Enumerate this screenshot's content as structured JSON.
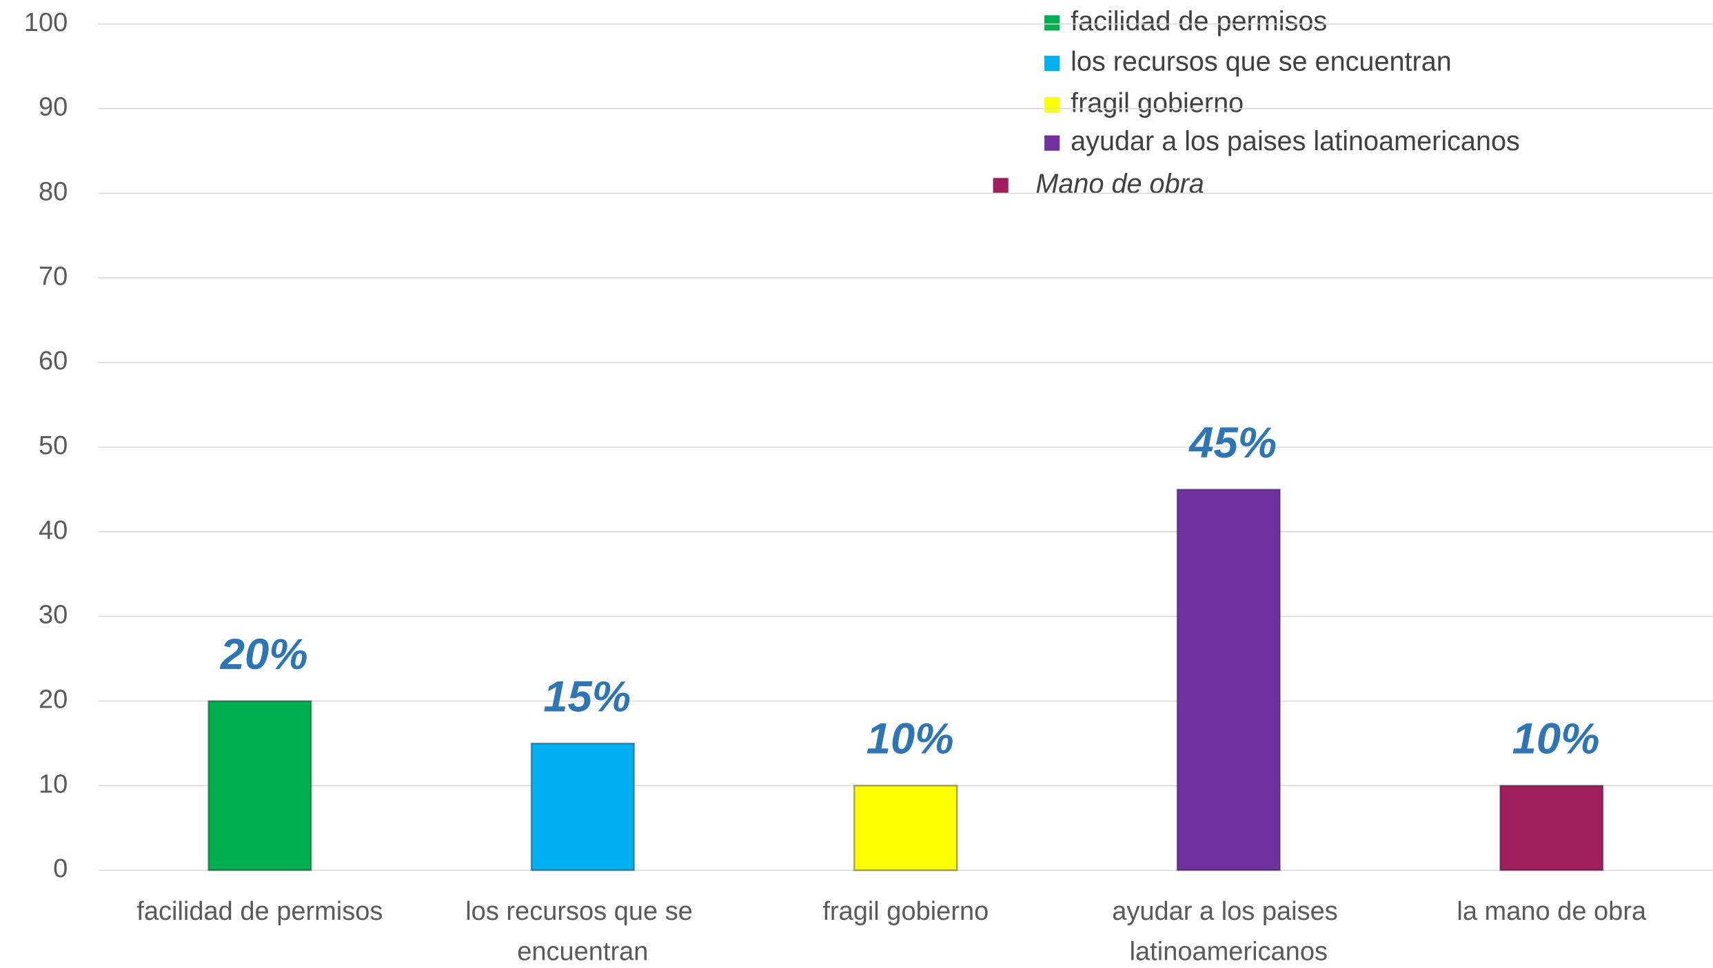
{
  "chart_data": {
    "type": "bar",
    "categories": [
      "facilidad de permisos",
      "los recursos que se encuentran",
      "fragil gobierno",
      "ayudar a los paises latinoamericanos",
      "la mano de obra"
    ],
    "values": [
      20,
      15,
      10,
      45,
      10
    ],
    "value_labels": [
      "20%",
      "15%",
      "10%",
      "45%",
      "10%"
    ],
    "colors": [
      "#00b050",
      "#00b0f0",
      "#ffff00",
      "#7030a0",
      "#9e1e5e"
    ],
    "legend": {
      "names": [
        "facilidad de permisos",
        "los recursos que se encuentran",
        "fragil gobierno",
        "ayudar a los paises latinoamericanos",
        "Mano de obra"
      ],
      "colors": [
        "#00b050",
        "#00b0f0",
        "#ffff00",
        "#7030a0",
        "#9e1e5e"
      ]
    },
    "ylim": [
      0,
      100
    ],
    "yticks": [
      0,
      10,
      20,
      30,
      40,
      50,
      60,
      70,
      80,
      90,
      100
    ],
    "grid": true
  }
}
